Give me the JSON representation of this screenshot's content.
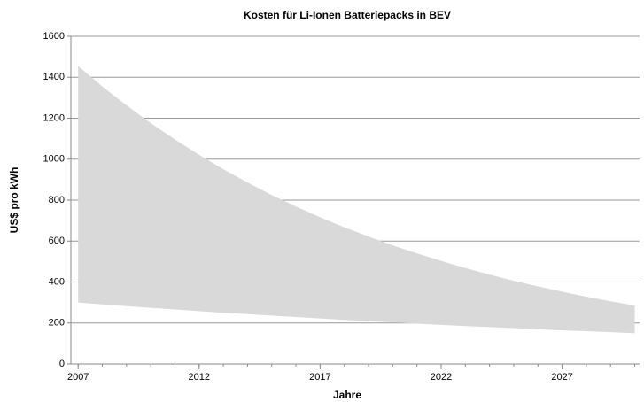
{
  "chart_data": {
    "type": "range_area",
    "title": "Kosten für Li-Ionen Batteriepacks in BEV",
    "x_label": "Jahre",
    "y_label": "US$ pro kWh",
    "x": [
      2007,
      2008,
      2009,
      2010,
      2011,
      2012,
      2013,
      2014,
      2015,
      2016,
      2017,
      2018,
      2019,
      2020,
      2021,
      2022,
      2023,
      2024,
      2025,
      2026,
      2027,
      2028,
      2029,
      2030
    ],
    "series": [
      {
        "values": [
          1455,
          1355,
          1263,
          1176,
          1096,
          1021,
          951,
          886,
          825,
          769,
          716,
          667,
          622,
          579,
          540,
          503,
          468,
          436,
          406,
          379,
          353,
          328,
          306,
          285
        ]
      },
      {
        "values": [
          300,
          291,
          282,
          274,
          266,
          258,
          250,
          243,
          236,
          229,
          222,
          215,
          209,
          203,
          197,
          191,
          185,
          180,
          175,
          169,
          164,
          160,
          155,
          150
        ]
      }
    ],
    "color": "#d9d9d9",
    "xlim": [
      2006.7,
      2030.2
    ],
    "xticks": [
      2007,
      2012,
      2017,
      2022,
      2027
    ],
    "ylim": [
      0,
      1600
    ],
    "yticks": [
      0,
      200,
      400,
      600,
      800,
      1000,
      1200,
      1400,
      1600
    ],
    "grid": true
  }
}
